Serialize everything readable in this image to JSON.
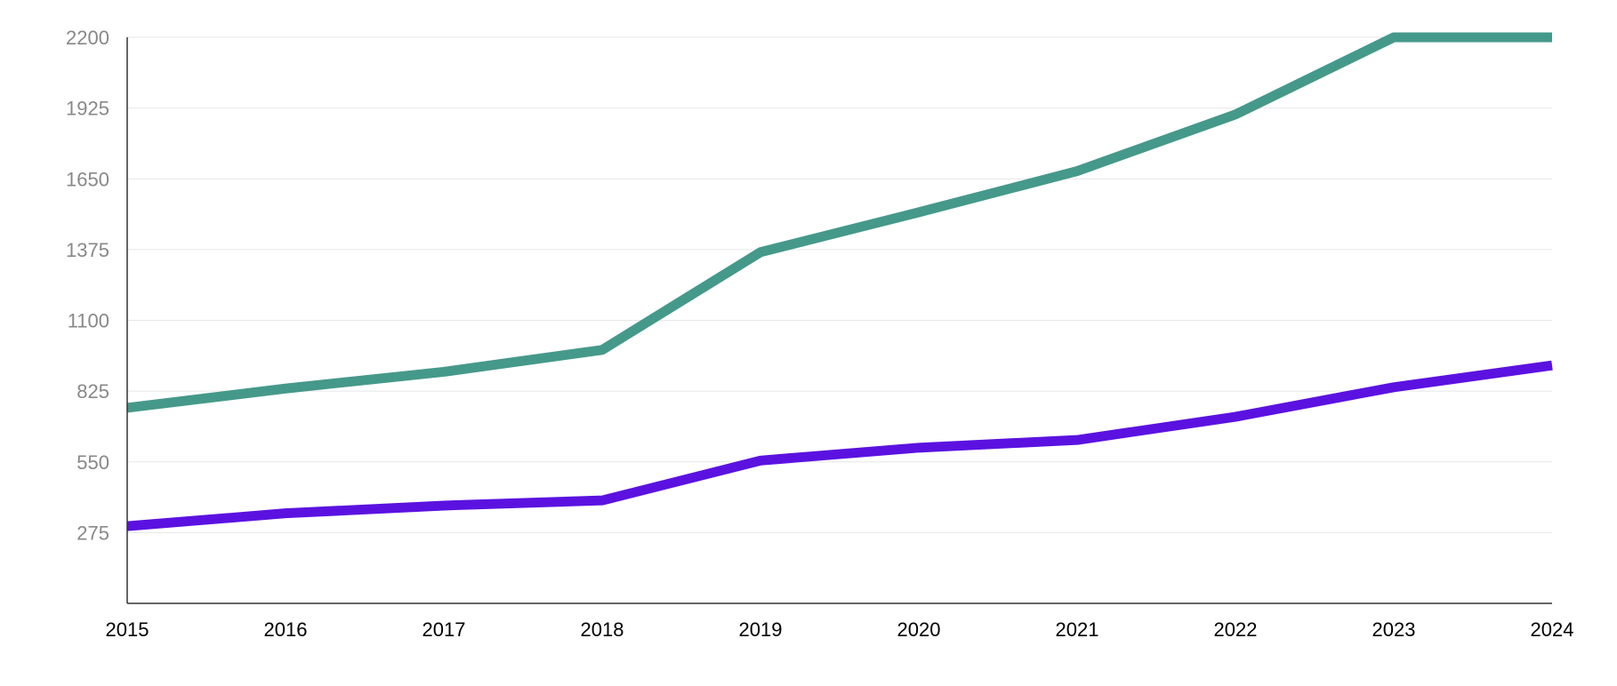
{
  "chart_data": {
    "type": "line",
    "title": "",
    "xlabel": "",
    "ylabel": "",
    "categories": [
      "2015",
      "2016",
      "2017",
      "2018",
      "2019",
      "2020",
      "2021",
      "2022",
      "2023",
      "2024"
    ],
    "yticks": [
      "275",
      "550",
      "825",
      "1100",
      "1375",
      "1650",
      "1925",
      "2200"
    ],
    "ylim": [
      0,
      2200
    ],
    "grid": true,
    "legend": "none",
    "series": [
      {
        "color": "#45998A",
        "values": [
          760,
          835,
          900,
          985,
          1365,
          1520,
          1680,
          1900,
          2200,
          2200
        ]
      },
      {
        "color": "#5B12E0",
        "values": [
          300,
          350,
          380,
          400,
          555,
          605,
          635,
          725,
          840,
          925
        ]
      }
    ]
  }
}
